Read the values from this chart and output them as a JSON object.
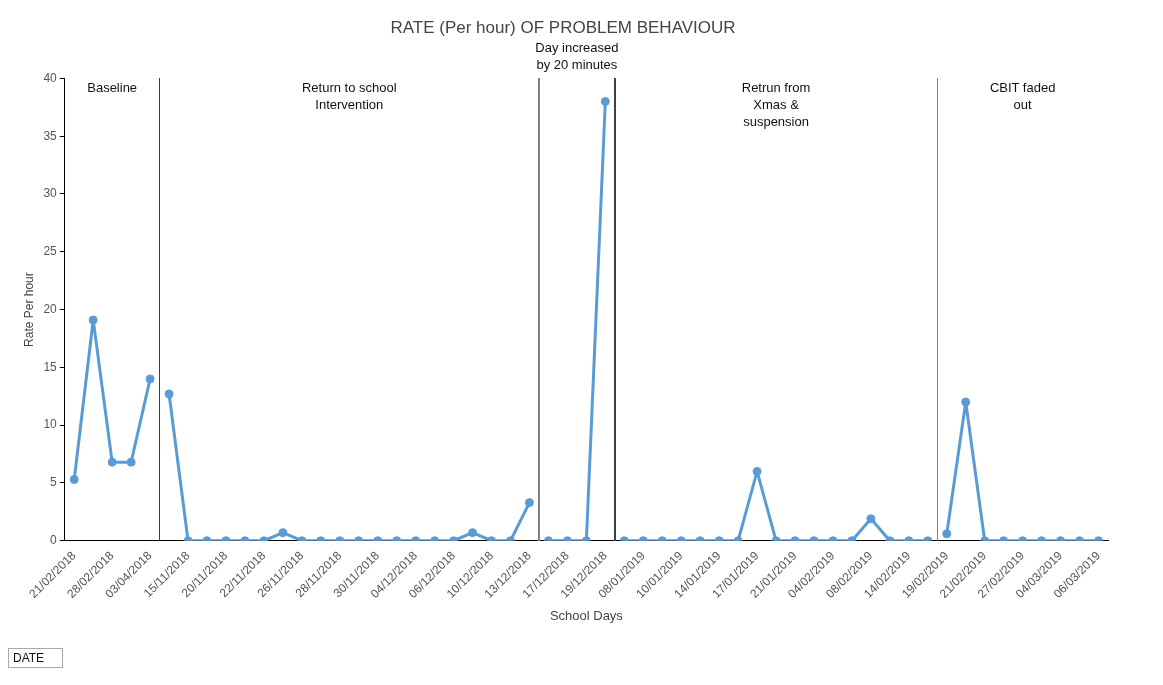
{
  "chart_data": {
    "type": "line",
    "title": "RATE (Per hour) OF PROBLEM BEHAVIOUR",
    "xlabel": "School Days",
    "ylabel": "Rate Per hour",
    "categories": [
      "21/02/2018",
      null,
      "28/02/2018",
      null,
      "03/04/2018",
      null,
      "15/11/2018",
      null,
      "20/11/2018",
      null,
      "22/11/2018",
      null,
      "26/11/2018",
      null,
      "28/11/2018",
      null,
      "30/11/2018",
      null,
      "04/12/2018",
      null,
      "06/12/2018",
      null,
      "10/12/2018",
      null,
      "13/12/2018",
      null,
      "17/12/2018",
      null,
      "19/12/2018",
      null,
      "08/01/2019",
      null,
      "10/01/2019",
      null,
      "14/01/2019",
      null,
      "17/01/2019",
      null,
      "21/01/2019",
      null,
      "04/02/2019",
      null,
      "08/02/2019",
      null,
      "14/02/2019",
      null,
      "19/02/2019",
      null,
      "21/02/2019",
      null,
      "27/02/2019",
      null,
      "04/03/2019",
      null,
      "06/03/2019"
    ],
    "series": [
      {
        "color": "#5b9bd5",
        "values": [
          5.3,
          19.1,
          6.8,
          6.8,
          14,
          null,
          null,
          null,
          null,
          null,
          null,
          null,
          null,
          null,
          null,
          null,
          null,
          null,
          null,
          null,
          null,
          null,
          null,
          null,
          null,
          null,
          null,
          null,
          null,
          null,
          null,
          null,
          null,
          null,
          null,
          null,
          null,
          null,
          null,
          null,
          null,
          null,
          null,
          null,
          null,
          null,
          null,
          null,
          null,
          null,
          null,
          null,
          null,
          null,
          null
        ]
      },
      {
        "color": "#5b9bd5",
        "values": [
          null,
          null,
          null,
          null,
          null,
          12.7,
          0,
          0,
          0,
          0,
          0,
          0.7,
          0,
          0,
          0,
          0,
          0,
          0,
          0,
          0,
          0,
          0.7,
          0,
          0,
          3.3,
          null,
          null,
          null,
          null,
          null,
          null,
          null,
          null,
          null,
          null,
          null,
          null,
          null,
          null,
          null,
          null,
          null,
          null,
          null,
          null,
          null,
          null,
          null,
          null,
          null,
          null,
          null,
          null,
          null,
          null
        ]
      },
      {
        "color": "#5b9bd5",
        "values": [
          null,
          null,
          null,
          null,
          null,
          null,
          null,
          null,
          null,
          null,
          null,
          null,
          null,
          null,
          null,
          null,
          null,
          null,
          null,
          null,
          null,
          null,
          null,
          null,
          null,
          0,
          0,
          0,
          38,
          null,
          null,
          null,
          null,
          null,
          null,
          null,
          null,
          null,
          null,
          null,
          null,
          null,
          null,
          null,
          null,
          null,
          null,
          null,
          null,
          null,
          null,
          null,
          null,
          null,
          null
        ]
      },
      {
        "color": "#5b9bd5",
        "values": [
          null,
          null,
          null,
          null,
          null,
          null,
          null,
          null,
          null,
          null,
          null,
          null,
          null,
          null,
          null,
          null,
          null,
          null,
          null,
          null,
          null,
          null,
          null,
          null,
          null,
          null,
          null,
          null,
          null,
          0,
          0,
          0,
          0,
          0,
          0,
          0,
          6,
          0,
          0,
          0,
          0,
          0,
          1.9,
          0,
          0,
          0,
          null,
          null,
          null,
          null,
          null,
          null,
          null,
          null,
          null
        ]
      },
      {
        "color": "#5b9bd5",
        "values": [
          null,
          null,
          null,
          null,
          null,
          null,
          null,
          null,
          null,
          null,
          null,
          null,
          null,
          null,
          null,
          null,
          null,
          null,
          null,
          null,
          null,
          null,
          null,
          null,
          null,
          null,
          null,
          null,
          null,
          null,
          null,
          null,
          null,
          null,
          null,
          null,
          null,
          null,
          null,
          null,
          null,
          null,
          null,
          null,
          null,
          null,
          0.6,
          12,
          0,
          0,
          0,
          0,
          0,
          0,
          0
        ]
      }
    ],
    "ylim": [
      0,
      40
    ],
    "yticks": [
      0,
      5,
      10,
      15,
      20,
      25,
      30,
      35,
      40
    ],
    "grid": false,
    "legend": false,
    "marker": "circle",
    "line_style": "solid",
    "annotations": [
      "Baseline",
      "Return to school\nIntervention",
      "Day increased\nby 20 minutes",
      "Retrun from\nXmas &\nsuspension",
      "CBIT faded\nout",
      "DATE"
    ]
  }
}
